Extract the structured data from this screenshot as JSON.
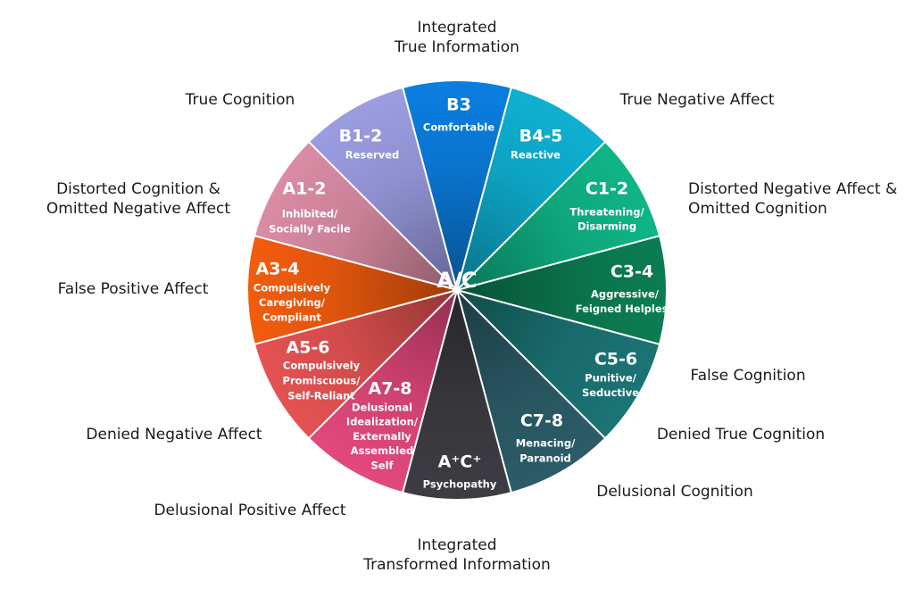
{
  "center_label": "A/C",
  "segments": [
    {
      "code": "B3",
      "description": [
        "Comfortable"
      ],
      "color": "#0a7ee0"
    },
    {
      "code": "B4-5",
      "description": [
        "Reactive"
      ],
      "color": "#0eb0d2"
    },
    {
      "code": "C1-2",
      "description": [
        "Threatening/",
        "Disarming"
      ],
      "color": "#0fb585"
    },
    {
      "code": "C3-4",
      "description": [
        "Aggressive/",
        "Feigned Helpless"
      ],
      "color": "#0b7d52"
    },
    {
      "code": "C5-6",
      "description": [
        "Punitive/",
        "Seductive"
      ],
      "color": "#1b7474"
    },
    {
      "code": "C7-8",
      "description": [
        "Menacing/",
        "Paranoid"
      ],
      "color": "#2b5c68"
    },
    {
      "code": "A⁺C⁺",
      "description": [
        "Psychopathy"
      ],
      "color": "#3c3c42"
    },
    {
      "code": "A7-8",
      "description": [
        "Delusional",
        "Idealization/",
        "Externally",
        "Assembled",
        "Self"
      ],
      "color": "#e2487c"
    },
    {
      "code": "A5-6",
      "description": [
        "Compulsively",
        "Promiscuous/",
        "Self-Reliant"
      ],
      "color": "#e45252"
    },
    {
      "code": "A3-4",
      "description": [
        "Compulsively",
        "Caregiving/",
        "Compliant"
      ],
      "color": "#f25c0e"
    },
    {
      "code": "A1-2",
      "description": [
        "Inhibited/",
        "Socially Facile"
      ],
      "color": "#da8ca4"
    },
    {
      "code": "B1-2",
      "description": [
        "Reserved"
      ],
      "color": "#9c9ce2"
    }
  ],
  "outer_labels": [
    [
      "Integrated",
      "True Information"
    ],
    [
      "True Negative Affect"
    ],
    [
      "Distorted Negative Affect &",
      "Omitted Cognition"
    ],
    [
      "False Cognition"
    ],
    [
      "Denied True Cognition"
    ],
    [
      "Delusional Cognition"
    ],
    [
      "Integrated",
      "Transformed Information"
    ],
    [
      "Delusional Positive Affect"
    ],
    [
      "Denied Negative Affect"
    ],
    [
      "False Positive Affect"
    ],
    [
      "Distorted Cognition &",
      "Omitted Negative Affect"
    ],
    [
      "True Cognition"
    ]
  ]
}
